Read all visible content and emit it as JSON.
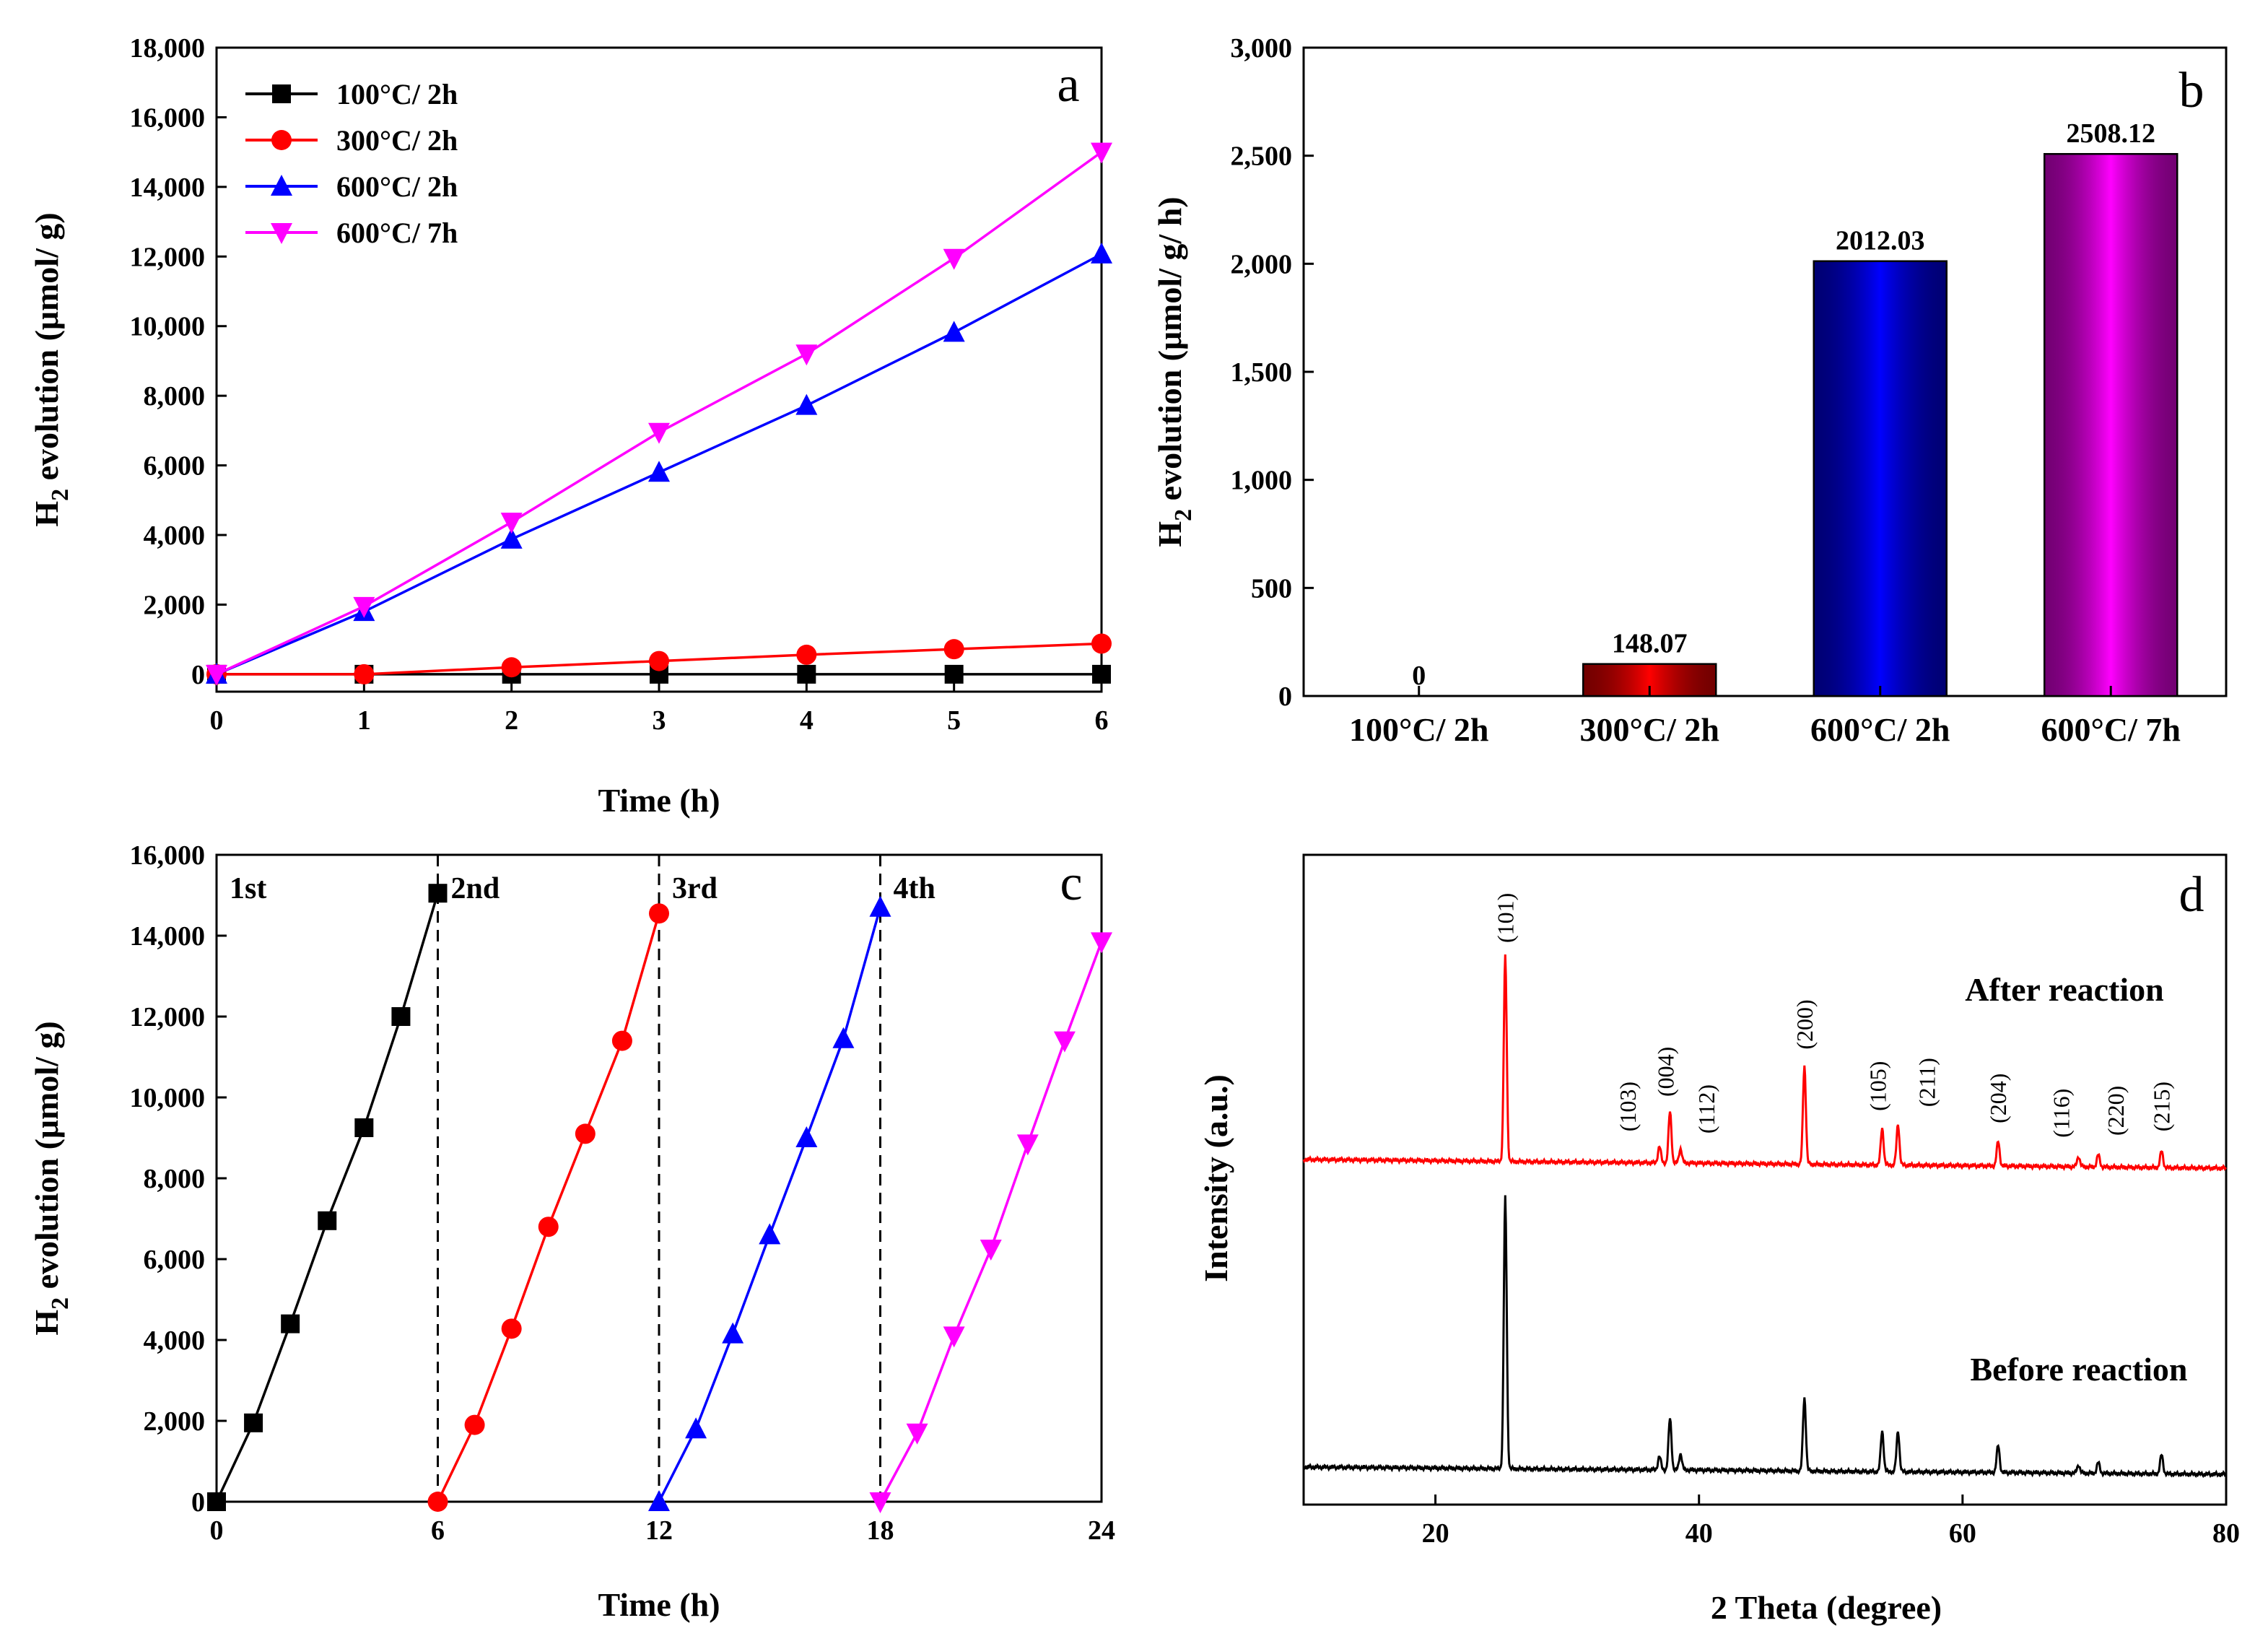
{
  "chart_data": [
    {
      "panel": "a",
      "type": "line",
      "xlabel": "Time (h)",
      "ylabel_main": "H",
      "ylabel_sub": "2",
      "ylabel_rest": " evolution (μmol/ g)",
      "xlim": [
        0,
        6
      ],
      "ylim": [
        -500,
        18000
      ],
      "xticks": [
        0,
        1,
        2,
        3,
        4,
        5,
        6
      ],
      "xtick_labels": [
        "0",
        "1",
        "2",
        "3",
        "4",
        "5",
        "6"
      ],
      "yticks": [
        0,
        2000,
        4000,
        6000,
        8000,
        10000,
        12000,
        14000,
        16000,
        18000
      ],
      "ytick_labels": [
        "0",
        "2,000",
        "4,000",
        "6,000",
        "8,000",
        "10,000",
        "12,000",
        "14,000",
        "16,000",
        "18,000"
      ],
      "x": [
        0,
        1,
        2,
        3,
        4,
        5,
        6
      ],
      "series": [
        {
          "name": "100°C/ 2h",
          "color": "#000000",
          "marker": "square",
          "values": [
            0,
            0,
            0,
            0,
            0,
            0,
            0
          ]
        },
        {
          "name": "300°C/ 2h",
          "color": "#ff0000",
          "marker": "circle",
          "values": [
            0,
            0,
            200,
            380,
            560,
            720,
            880
          ]
        },
        {
          "name": "600°C/ 2h",
          "color": "#0000ff",
          "marker": "triangle-up",
          "values": [
            0,
            1800,
            3880,
            5800,
            7720,
            9820,
            12070
          ]
        },
        {
          "name": "600°C/ 7h",
          "color": "#ff00ff",
          "marker": "triangle-down",
          "values": [
            0,
            1950,
            4370,
            6950,
            9200,
            11950,
            15000
          ]
        }
      ]
    },
    {
      "panel": "b",
      "type": "bar",
      "ylabel_main": "H",
      "ylabel_sub": "2",
      "ylabel_rest": " evolution (μmol/ g/ h)",
      "ylim": [
        0,
        3000
      ],
      "yticks": [
        0,
        500,
        1000,
        1500,
        2000,
        2500,
        3000
      ],
      "ytick_labels": [
        "0",
        "500",
        "1,000",
        "1,500",
        "2,000",
        "2,500",
        "3,000"
      ],
      "categories": [
        "100°C/ 2h",
        "300°C/ 2h",
        "600°C/ 2h",
        "600°C/ 7h"
      ],
      "values": [
        0,
        148.07,
        2012.03,
        2508.12
      ],
      "value_labels": [
        "0",
        "148.07",
        "2012.03",
        "2508.12"
      ],
      "colors": [
        "#000000",
        "#ff0000",
        "#0000ff",
        "#ff00ff"
      ]
    },
    {
      "panel": "c",
      "type": "line",
      "xlabel": "Time (h)",
      "ylabel_main": "H",
      "ylabel_sub": "2",
      "ylabel_rest": " evolution (μmol/ g)",
      "xlim": [
        0,
        24
      ],
      "ylim": [
        0,
        16000
      ],
      "xticks": [
        0,
        6,
        12,
        18,
        24
      ],
      "xtick_labels": [
        "0",
        "6",
        "12",
        "18",
        "24"
      ],
      "yticks": [
        0,
        2000,
        4000,
        6000,
        8000,
        10000,
        12000,
        14000,
        16000
      ],
      "ytick_labels": [
        "0",
        "2,000",
        "4,000",
        "6,000",
        "8,000",
        "10,000",
        "12,000",
        "14,000",
        "16,000"
      ],
      "cycle_labels": [
        "1st",
        "2nd",
        "3rd",
        "4th"
      ],
      "dividers": [
        6,
        12,
        18
      ],
      "series": [
        {
          "name": "1st",
          "color": "#000000",
          "marker": "square",
          "x": [
            0,
            1,
            2,
            3,
            4,
            5,
            6
          ],
          "values": [
            0,
            1950,
            4400,
            6950,
            9250,
            12000,
            15050
          ]
        },
        {
          "name": "2nd",
          "color": "#ff0000",
          "marker": "circle",
          "x": [
            6,
            7,
            8,
            9,
            10,
            11,
            12
          ],
          "values": [
            0,
            1900,
            4280,
            6800,
            9100,
            11400,
            14550
          ]
        },
        {
          "name": "3rd",
          "color": "#0000ff",
          "marker": "triangle-up",
          "x": [
            12,
            13,
            14,
            15,
            16,
            17,
            18
          ],
          "values": [
            0,
            1800,
            4150,
            6600,
            9000,
            11450,
            14700
          ]
        },
        {
          "name": "4th",
          "color": "#ff00ff",
          "marker": "triangle-down",
          "x": [
            18,
            19,
            20,
            21,
            22,
            23,
            24
          ],
          "values": [
            0,
            1700,
            4100,
            6250,
            8850,
            11400,
            13850
          ]
        }
      ]
    },
    {
      "panel": "d",
      "type": "line",
      "xlabel": "2 Theta (degree)",
      "ylabel": "Intensity (a.u.)",
      "xlim": [
        10,
        80
      ],
      "xticks": [
        20,
        40,
        60,
        80
      ],
      "xtick_labels": [
        "20",
        "40",
        "60",
        "80"
      ],
      "series": [
        {
          "name": "After reaction",
          "color": "#ff0000",
          "peaks": [
            {
              "pos": 25.3,
              "height": 1.0,
              "label": "(101)"
            },
            {
              "pos": 37.0,
              "height": 0.08,
              "label": "(103)"
            },
            {
              "pos": 37.8,
              "height": 0.25,
              "label": "(004)"
            },
            {
              "pos": 38.6,
              "height": 0.07,
              "label": "(112)"
            },
            {
              "pos": 48.0,
              "height": 0.48,
              "label": "(200)"
            },
            {
              "pos": 53.9,
              "height": 0.18,
              "label": "(105)"
            },
            {
              "pos": 55.1,
              "height": 0.2,
              "label": "(211)"
            },
            {
              "pos": 62.7,
              "height": 0.12,
              "label": "(204)"
            },
            {
              "pos": 68.8,
              "height": 0.05,
              "label": "(116)"
            },
            {
              "pos": 70.3,
              "height": 0.06,
              "label": "(220)"
            },
            {
              "pos": 75.1,
              "height": 0.08,
              "label": "(215)"
            }
          ]
        },
        {
          "name": "Before reaction",
          "color": "#000000",
          "peaks": [
            {
              "pos": 25.3,
              "height": 1.0
            },
            {
              "pos": 37.0,
              "height": 0.05
            },
            {
              "pos": 37.8,
              "height": 0.19
            },
            {
              "pos": 38.6,
              "height": 0.06
            },
            {
              "pos": 48.0,
              "height": 0.27
            },
            {
              "pos": 53.9,
              "height": 0.15
            },
            {
              "pos": 55.1,
              "height": 0.15
            },
            {
              "pos": 62.7,
              "height": 0.1
            },
            {
              "pos": 68.8,
              "height": 0.03
            },
            {
              "pos": 70.3,
              "height": 0.04
            },
            {
              "pos": 75.1,
              "height": 0.07
            }
          ]
        }
      ]
    }
  ],
  "panel_letters": [
    "a",
    "b",
    "c",
    "d"
  ]
}
